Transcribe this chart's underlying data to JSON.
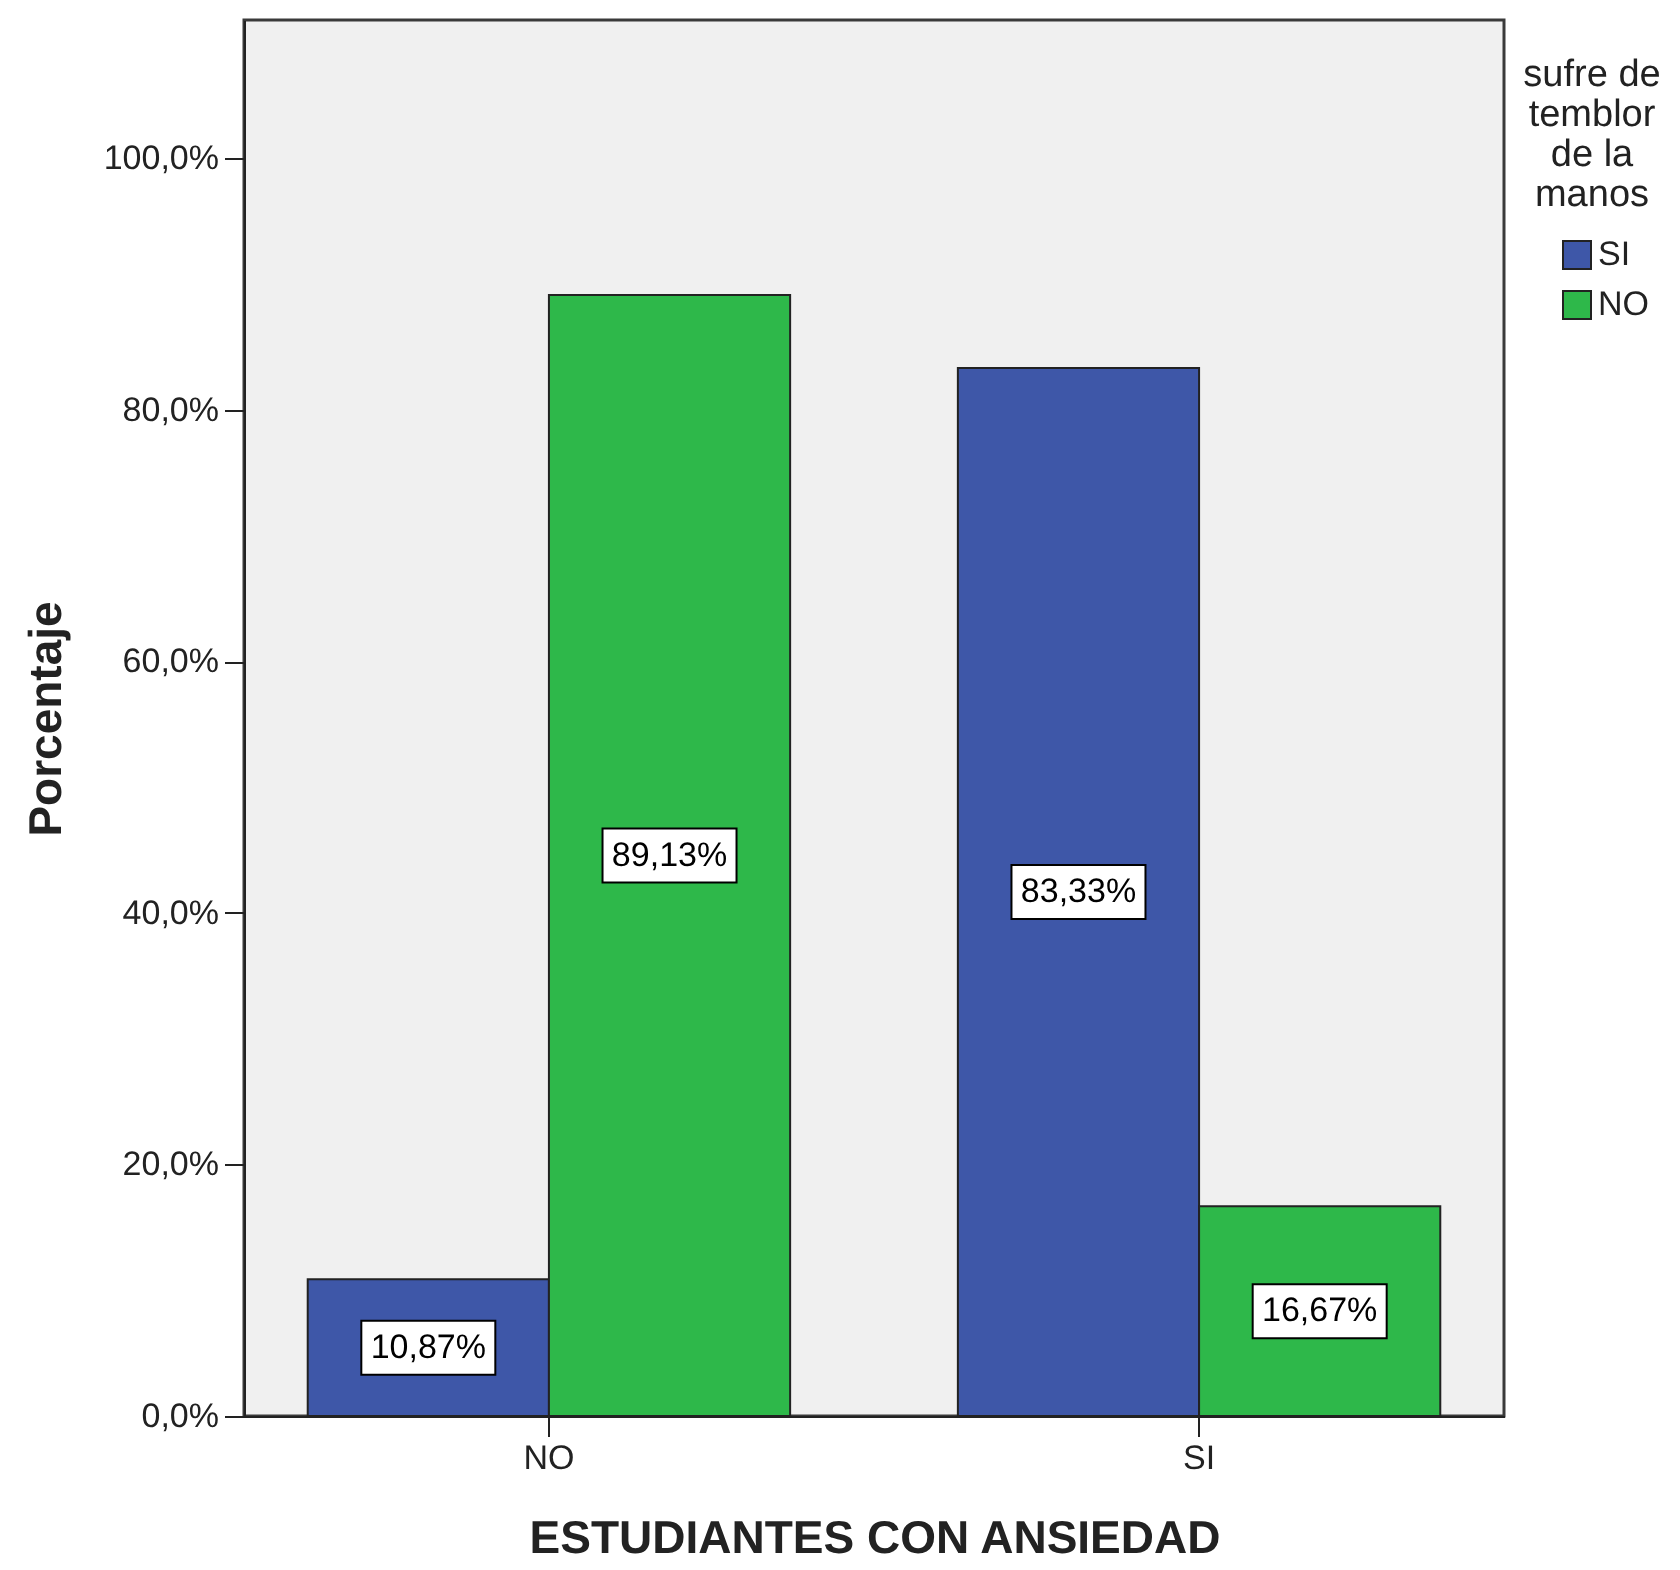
{
  "chart_data": {
    "type": "bar",
    "xlabel": "ESTUDIANTES CON ANSIEDAD",
    "ylabel": "Porcentaje",
    "legend_title": "sufre de temblor de la manos",
    "categories": [
      "NO",
      "SI"
    ],
    "series": [
      {
        "name": "SI",
        "color": "#3e57a8",
        "values": [
          10.87,
          83.33
        ],
        "value_labels": [
          "10,87%",
          "83,33%"
        ]
      },
      {
        "name": "NO",
        "color": "#2eb84a",
        "values": [
          89.13,
          16.67
        ],
        "value_labels": [
          "89,13%",
          "16,67%"
        ]
      }
    ],
    "ylim": [
      0,
      111
    ],
    "yticks": [
      {
        "value": 0,
        "label": "0,0%"
      },
      {
        "value": 20,
        "label": "20,0%"
      },
      {
        "value": 40,
        "label": "40,0%"
      },
      {
        "value": 60,
        "label": "60,0%"
      },
      {
        "value": 80,
        "label": "80,0%"
      },
      {
        "value": 100,
        "label": "100,0%"
      }
    ],
    "legend": "top right"
  }
}
